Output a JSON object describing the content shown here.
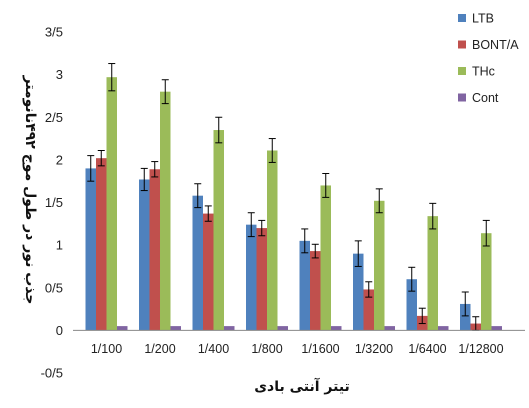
{
  "chart_data": {
    "type": "bar",
    "title": "",
    "xlabel": "تیتر آنتی بادی",
    "ylabel": "جذب نور در طول موج ۴۹۲نانومتر",
    "ylim": [
      -0.5,
      3.5
    ],
    "y_ticks": [
      "-0/5",
      "0",
      "0/5",
      "1",
      "1/5",
      "2",
      "2/5",
      "3",
      "3/5"
    ],
    "y_tick_values": [
      -0.5,
      0,
      0.5,
      1,
      1.5,
      2,
      2.5,
      3,
      3.5
    ],
    "categories": [
      "1/100",
      "1/200",
      "1/400",
      "1/800",
      "1/1600",
      "1/3200",
      "1/6400",
      "1/12800"
    ],
    "grid": false,
    "legend_position": "right",
    "error_bars": true,
    "series": [
      {
        "name": "LTB",
        "color": "#4f81bd",
        "values": [
          1.9,
          1.77,
          1.58,
          1.24,
          1.05,
          0.9,
          0.6,
          0.31
        ],
        "errors": [
          0.15,
          0.13,
          0.14,
          0.14,
          0.14,
          0.15,
          0.14,
          0.14
        ]
      },
      {
        "name": "BONT/A",
        "color": "#c0504d",
        "values": [
          2.02,
          1.89,
          1.37,
          1.2,
          0.93,
          0.48,
          0.17,
          0.08
        ],
        "errors": [
          0.09,
          0.09,
          0.09,
          0.09,
          0.08,
          0.09,
          0.09,
          0.08
        ]
      },
      {
        "name": "THc",
        "color": "#9bbb59",
        "values": [
          2.97,
          2.8,
          2.35,
          2.11,
          1.7,
          1.52,
          1.34,
          1.14
        ],
        "errors": [
          0.16,
          0.14,
          0.15,
          0.14,
          0.14,
          0.14,
          0.15,
          0.15
        ]
      },
      {
        "name": "Cont",
        "color": "#8064a2",
        "values": [
          0.05,
          0.05,
          0.05,
          0.05,
          0.05,
          0.05,
          0.05,
          0.05
        ],
        "errors": [
          0,
          0,
          0,
          0,
          0,
          0,
          0,
          0
        ]
      }
    ]
  }
}
